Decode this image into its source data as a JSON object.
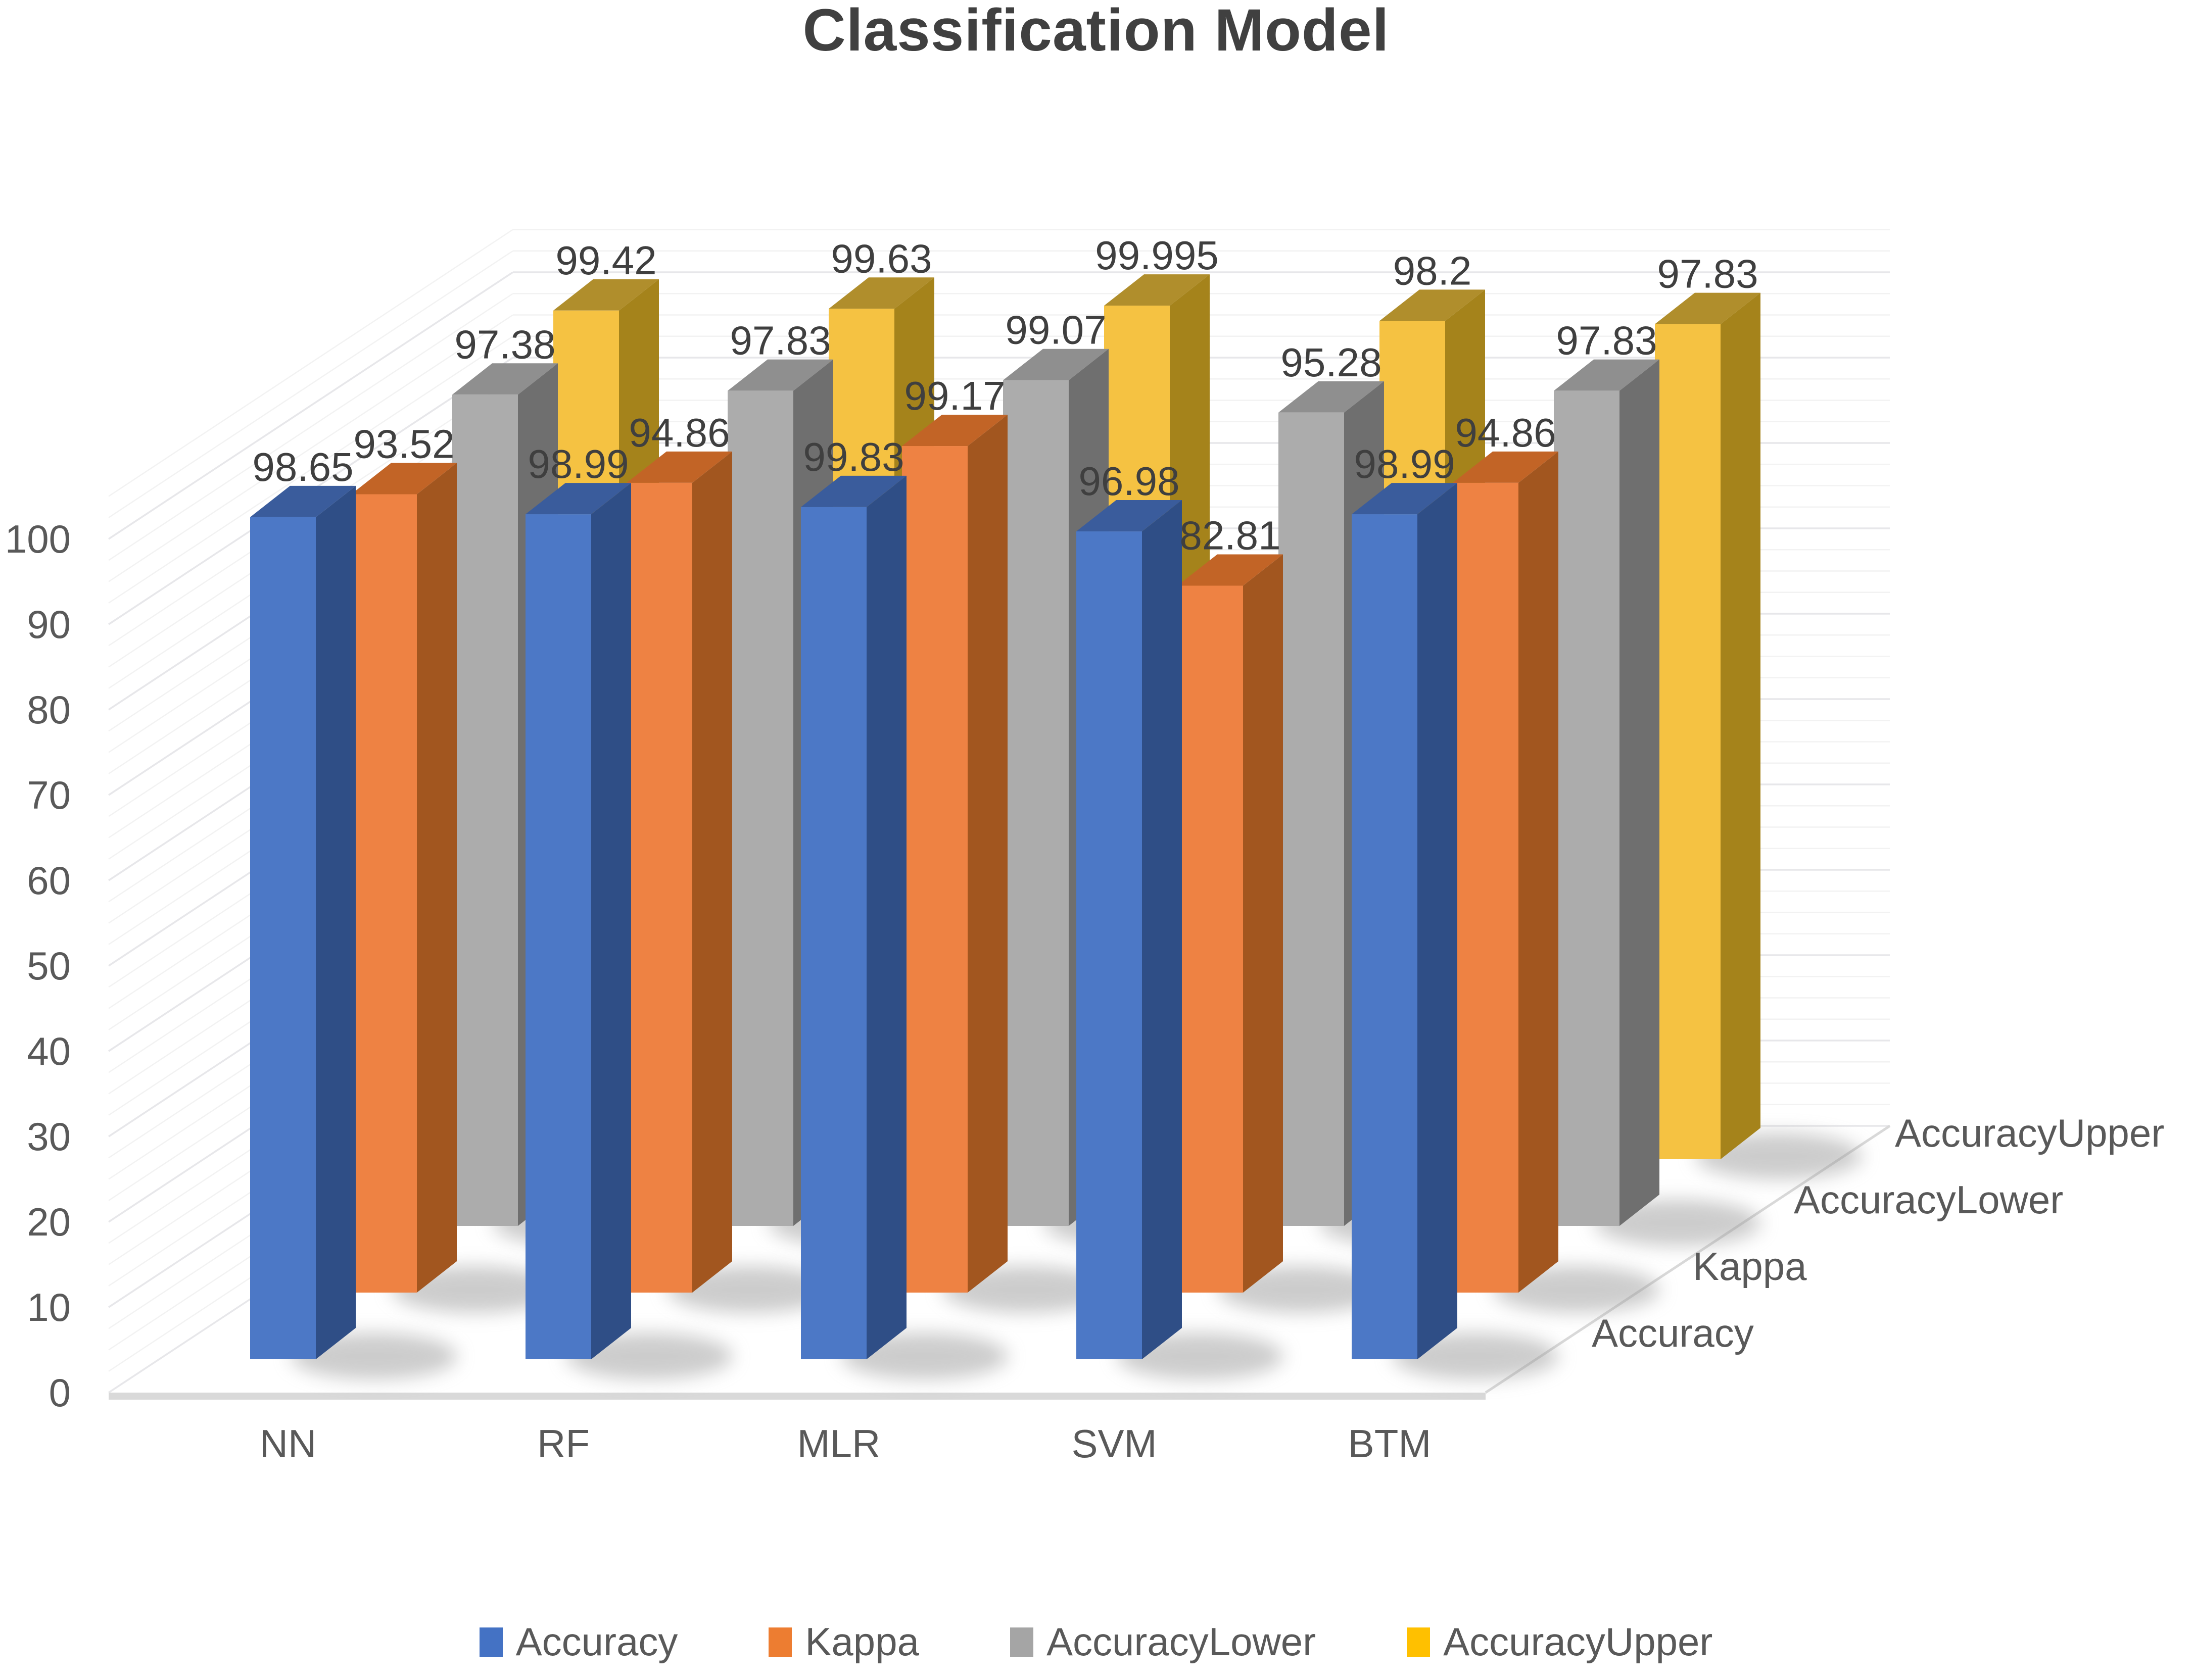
{
  "title": "Classification Model",
  "chart_data": {
    "type": "bar",
    "variant": "3d-clustered-column",
    "title": "Classification Model",
    "categories": [
      "NN",
      "RF",
      "MLR",
      "SVM",
      "BTM"
    ],
    "series": [
      {
        "name": "Accuracy",
        "values": [
          98.65,
          98.99,
          99.83,
          96.98,
          98.99
        ],
        "color": "#4472C4",
        "face_front": "#4C78C6",
        "face_top": "#3A5C9C",
        "face_side": "#2F4E86"
      },
      {
        "name": "Kappa",
        "values": [
          93.52,
          94.86,
          99.17,
          82.81,
          94.86
        ],
        "color": "#ED7D31",
        "face_front": "#EE8243",
        "face_top": "#C26426",
        "face_side": "#A2561F"
      },
      {
        "name": "AccuracyLower",
        "values": [
          97.38,
          97.83,
          99.07,
          95.28,
          97.83
        ],
        "color": "#A5A5A5",
        "face_front": "#ACACAC",
        "face_top": "#8F8F8F",
        "face_side": "#6F6F6F"
      },
      {
        "name": "AccuracyUpper",
        "values": [
          99.42,
          99.63,
          99.995,
          98.2,
          97.83
        ],
        "color": "#FFC000",
        "face_front": "#F5C242",
        "face_top": "#B08E2C",
        "face_side": "#A5831B"
      }
    ],
    "depth_axis_labels": [
      "Accuracy",
      "Kappa",
      "AccuracyLower",
      "AccuracyUpper"
    ],
    "y_ticks": [
      0,
      10,
      20,
      30,
      40,
      50,
      60,
      70,
      80,
      90,
      100
    ],
    "ylim": [
      0,
      100
    ],
    "legend_position": "bottom",
    "gridlines": true,
    "data_labels_shown": true
  },
  "style": {
    "title_color": "#404040",
    "axis_text_color": "#595959",
    "data_label_color": "#3F3F3F",
    "grid_minor_color": "#F2F2F2",
    "grid_major_color": "#E7E7EA",
    "floor_edge_color": "#D9D9D9",
    "wall_fill": "#FFFFFF",
    "shadow_color": "#9A9A9A"
  }
}
